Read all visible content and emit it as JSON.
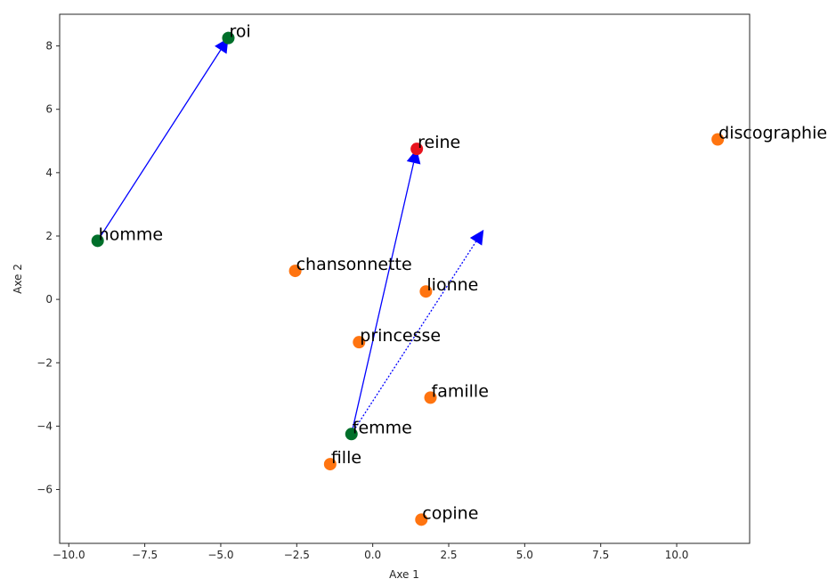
{
  "chart_data": {
    "type": "scatter",
    "title": "",
    "xlabel": "Axe 1",
    "ylabel": "Axe 2",
    "xlim": [
      -10.3,
      12.4
    ],
    "ylim": [
      -7.7,
      9.0
    ],
    "xticks": [
      -10.0,
      -7.5,
      -5.0,
      -2.5,
      0.0,
      2.5,
      5.0,
      7.5,
      10.0
    ],
    "xtick_labels": [
      "−10.0",
      "−7.5",
      "−5.0",
      "−2.5",
      "0.0",
      "2.5",
      "5.0",
      "7.5",
      "10.0"
    ],
    "yticks": [
      -6,
      -4,
      -2,
      0,
      2,
      4,
      6,
      8
    ],
    "ytick_labels": [
      "−6",
      "−4",
      "−2",
      "0",
      "2",
      "4",
      "6",
      "8"
    ],
    "grid": false,
    "colors": {
      "green": "#006f2a",
      "orange": "#ff7410",
      "red": "#e8141e",
      "arrow": "#0000ff",
      "axes": "#262626"
    },
    "points": [
      {
        "label": "roi",
        "x": -4.75,
        "y": 8.25,
        "color": "green"
      },
      {
        "label": "homme",
        "x": -9.05,
        "y": 1.85,
        "color": "green"
      },
      {
        "label": "femme",
        "x": -0.7,
        "y": -4.25,
        "color": "green"
      },
      {
        "label": "reine",
        "x": 1.45,
        "y": 4.75,
        "color": "red"
      },
      {
        "label": "discographie",
        "x": 11.35,
        "y": 5.05,
        "color": "orange"
      },
      {
        "label": "chansonnette",
        "x": -2.55,
        "y": 0.9,
        "color": "orange"
      },
      {
        "label": "lionne",
        "x": 1.75,
        "y": 0.25,
        "color": "orange"
      },
      {
        "label": "princesse",
        "x": -0.45,
        "y": -1.35,
        "color": "orange"
      },
      {
        "label": "famille",
        "x": 1.9,
        "y": -3.1,
        "color": "orange"
      },
      {
        "label": "fille",
        "x": -1.4,
        "y": -5.2,
        "color": "orange"
      },
      {
        "label": "copine",
        "x": 1.6,
        "y": -6.95,
        "color": "orange"
      }
    ],
    "arrows": [
      {
        "from": [
          -9.05,
          1.85
        ],
        "to": [
          -4.75,
          8.25
        ],
        "style": "solid"
      },
      {
        "from": [
          -0.7,
          -4.25
        ],
        "to": [
          1.45,
          4.75
        ],
        "style": "solid"
      },
      {
        "from": [
          -0.7,
          -4.25
        ],
        "to": [
          3.65,
          2.2
        ],
        "style": "dotted"
      }
    ]
  }
}
